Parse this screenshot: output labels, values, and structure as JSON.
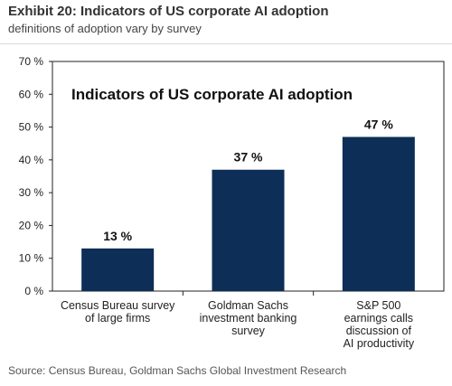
{
  "exhibit": {
    "title": "Exhibit 20: Indicators of US corporate AI adoption",
    "subtitle": "definitions of adoption vary by survey"
  },
  "source": "Source: Census Bureau, Goldman Sachs Global Investment Research",
  "colors": {
    "bar": "#0d2e56",
    "axis": "#222222",
    "text": "#222222"
  },
  "chart_data": {
    "type": "bar",
    "title": "Indicators of US corporate AI adoption",
    "xlabel": "",
    "ylabel": "",
    "ylim": [
      0,
      70
    ],
    "yticks": [
      0,
      10,
      20,
      30,
      40,
      50,
      60,
      70
    ],
    "ytick_labels": [
      "0 %",
      "10 %",
      "20 %",
      "30 %",
      "40 %",
      "50 %",
      "60 %",
      "70 %"
    ],
    "categories": [
      [
        "Census Bureau survey",
        "of large firms"
      ],
      [
        "Goldman Sachs",
        "investment banking",
        "survey"
      ],
      [
        "S&P 500",
        "earnings calls",
        "discussion of",
        "AI productivity"
      ]
    ],
    "values": [
      13,
      37,
      47
    ],
    "value_labels": [
      "13 %",
      "37 %",
      "47 %"
    ],
    "grid": false,
    "legend": "none"
  }
}
